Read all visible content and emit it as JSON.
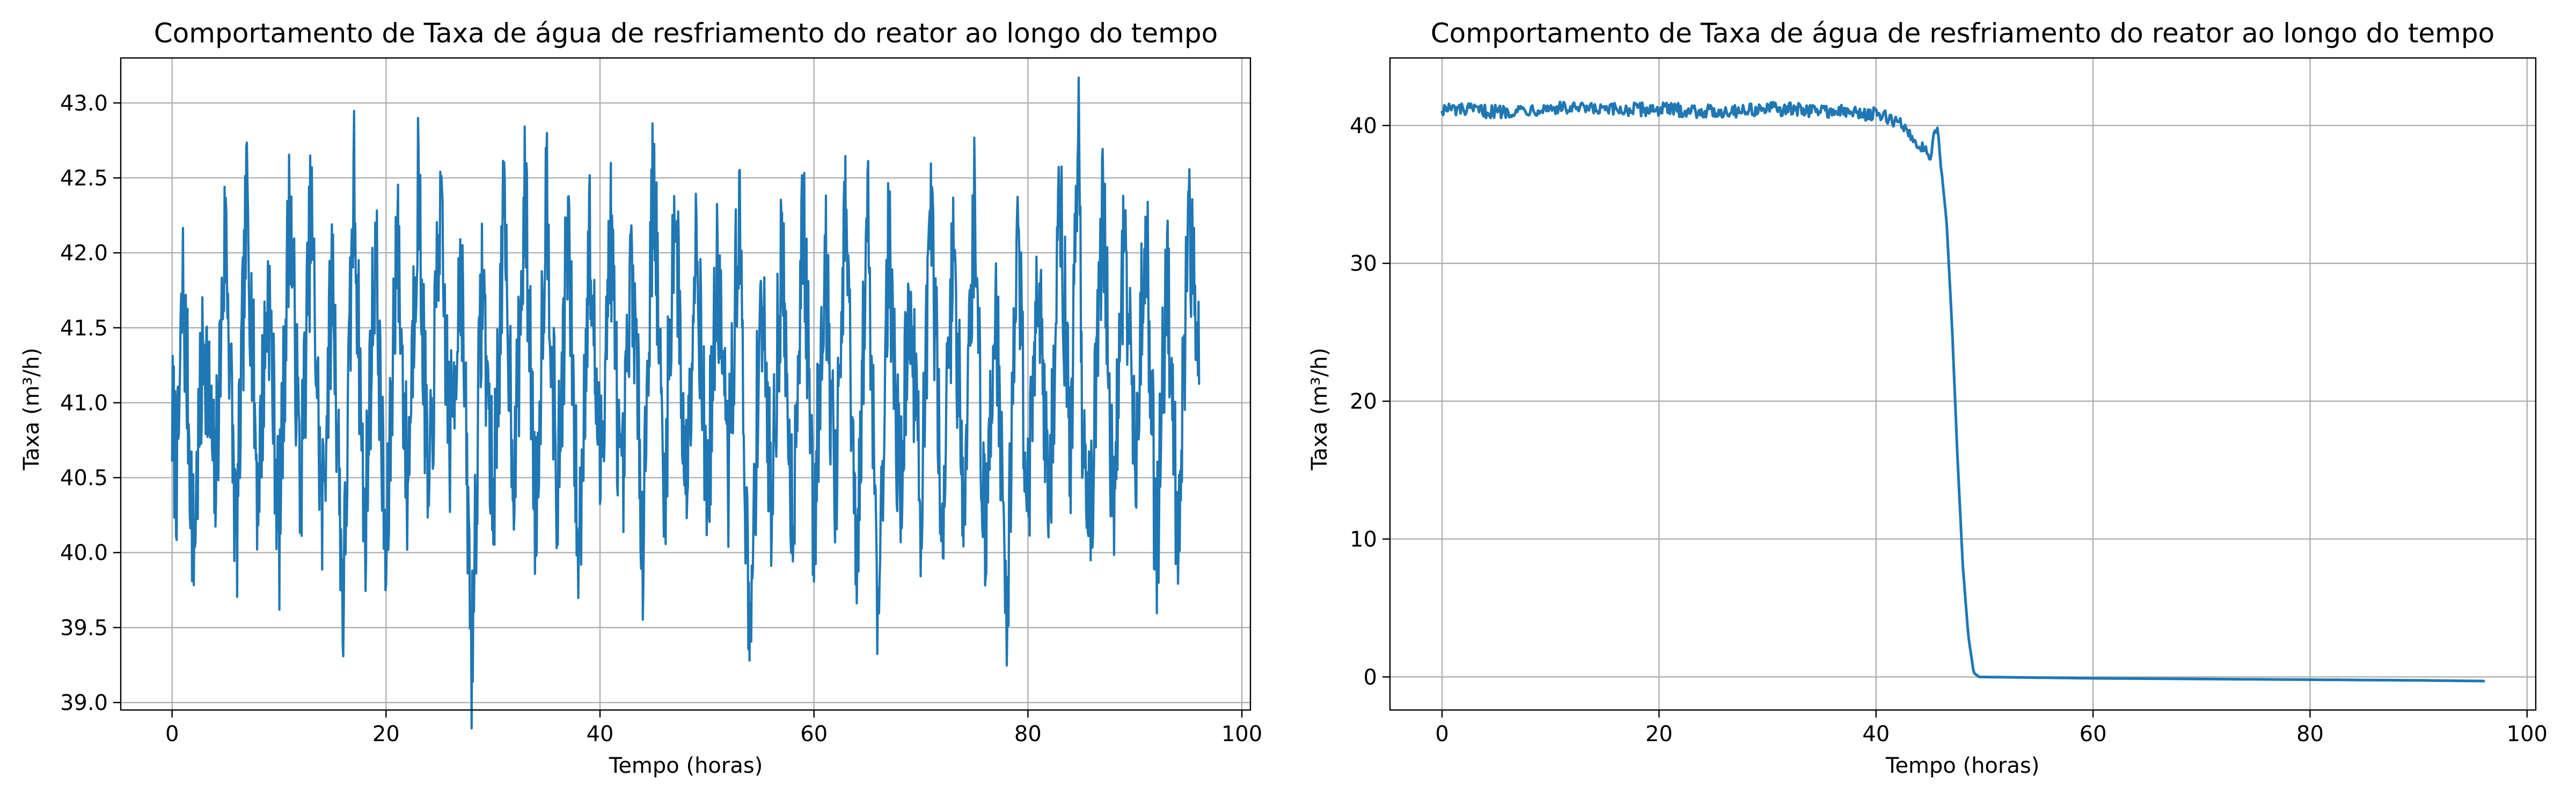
{
  "chart_data": [
    {
      "type": "line",
      "title": "Comportamento de Taxa de água de resfriamento do reator ao longo do tempo",
      "xlabel": "Tempo (horas)",
      "ylabel": "Taxa (m³/h)",
      "xlim": [
        -4.8,
        100.8
      ],
      "ylim": [
        38.95,
        43.3
      ],
      "xticks": [
        0,
        20,
        40,
        60,
        80,
        100
      ],
      "yticks": [
        39.0,
        39.5,
        40.0,
        40.5,
        41.0,
        41.5,
        42.0,
        42.5,
        43.0
      ],
      "ytick_labels": [
        "39.0",
        "39.5",
        "40.0",
        "40.5",
        "41.0",
        "41.5",
        "42.0",
        "42.5",
        "43.0"
      ],
      "grid": true,
      "color": "#1f77b4",
      "series": [
        {
          "x": [
            0,
            0.5,
            1,
            1.5,
            2,
            3,
            4,
            5,
            6,
            7,
            8,
            9,
            10,
            11,
            12,
            13,
            14,
            15,
            16,
            17,
            18,
            19,
            20,
            21,
            22,
            23,
            24,
            25,
            26,
            27,
            28,
            29,
            30,
            31,
            32,
            33,
            34,
            35,
            36,
            37,
            38,
            39,
            40,
            41,
            42,
            43,
            44,
            45,
            46,
            47,
            48,
            49,
            50,
            51,
            52,
            53,
            54,
            55,
            56,
            57,
            58,
            59,
            60,
            61,
            62,
            63,
            64,
            65,
            66,
            67,
            68,
            69,
            70,
            71,
            72,
            73,
            74,
            75,
            76,
            77,
            78,
            79,
            80,
            81,
            82,
            83,
            84,
            84.8,
            85,
            86,
            87,
            88,
            89,
            90,
            91,
            92,
            93,
            94,
            95,
            96
          ],
          "y": [
            40.9,
            40.5,
            41.8,
            41.0,
            40.0,
            41.5,
            40.4,
            42.2,
            40.0,
            42.4,
            40.4,
            41.8,
            40.1,
            42.4,
            40.4,
            42.3,
            40.2,
            41.9,
            39.6,
            42.5,
            40.1,
            42.1,
            39.8,
            42.2,
            40.4,
            42.5,
            40.2,
            42.3,
            40.7,
            42.0,
            39.3,
            41.9,
            40.3,
            42.2,
            40.5,
            42.4,
            40.2,
            42.5,
            40.3,
            42.2,
            39.9,
            42.1,
            40.5,
            42.2,
            40.2,
            42.0,
            40.1,
            42.6,
            40.3,
            42.4,
            40.4,
            42.2,
            40.3,
            41.9,
            40.5,
            42.3,
            39.2,
            41.8,
            40.4,
            42.0,
            40.2,
            42.3,
            40.1,
            42.1,
            40.3,
            42.3,
            39.7,
            42.4,
            39.6,
            42.1,
            40.4,
            41.7,
            40.3,
            42.2,
            40.2,
            42.0,
            40.4,
            42.3,
            40.0,
            41.8,
            39.5,
            42.2,
            40.3,
            42.0,
            40.2,
            42.4,
            40.6,
            43.1,
            41.0,
            40.3,
            42.4,
            40.2,
            42.2,
            40.5,
            42.3,
            39.9,
            42.0,
            40.1,
            42.1,
            41.5
          ],
          "note_noise_amplitude": 0.55
        }
      ]
    },
    {
      "type": "line",
      "title": "Comportamento de Taxa de água de resfriamento do reator ao longo do tempo",
      "xlabel": "Tempo (horas)",
      "ylabel": "Taxa (m³/h)",
      "xlim": [
        -4.8,
        100.8
      ],
      "ylim": [
        -2.4,
        44.9
      ],
      "xticks": [
        0,
        20,
        40,
        60,
        80,
        100
      ],
      "yticks": [
        0,
        10,
        20,
        30,
        40
      ],
      "ytick_labels": [
        "0",
        "10",
        "20",
        "30",
        "40"
      ],
      "grid": true,
      "color": "#1f77b4",
      "series": [
        {
          "x": [
            0,
            5,
            10,
            15,
            20,
            25,
            30,
            35,
            40,
            42,
            43,
            44,
            45,
            45.6,
            46,
            46.5,
            47,
            47.5,
            48,
            48.5,
            49,
            49.5,
            60,
            70,
            80,
            90,
            96
          ],
          "y": [
            41.2,
            41.0,
            41.3,
            41.1,
            41.2,
            41.0,
            41.2,
            41.1,
            40.8,
            40.3,
            39.5,
            38.5,
            38.0,
            39.8,
            37.0,
            33.0,
            25.5,
            16.0,
            8.0,
            3.0,
            0.3,
            0.0,
            -0.1,
            -0.15,
            -0.2,
            -0.25,
            -0.3
          ],
          "note_noise_amplitude": 0.5
        }
      ]
    }
  ]
}
